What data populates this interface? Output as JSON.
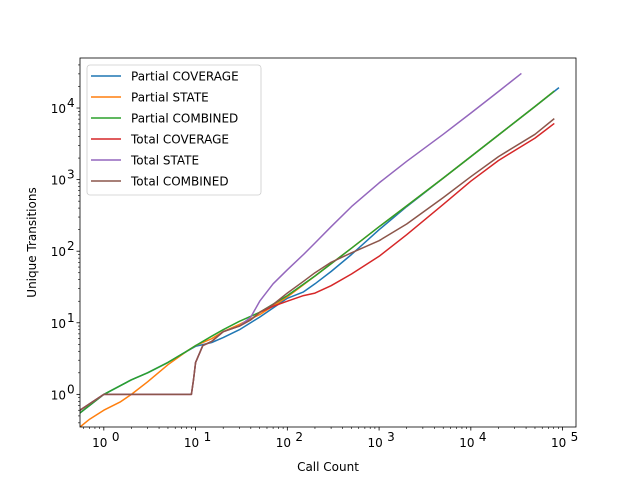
{
  "chart_data": {
    "type": "line",
    "title": "",
    "xlabel": "Call Count",
    "ylabel": "Unique Transitions",
    "xscale": "log",
    "yscale": "log",
    "xlim": [
      0.55,
      140000
    ],
    "ylim": [
      0.35,
      50000
    ],
    "grid": false,
    "legend_position": "top-left",
    "x_ticks": [
      {
        "value": 1,
        "base": "10",
        "exp": "0"
      },
      {
        "value": 10,
        "base": "10",
        "exp": "1"
      },
      {
        "value": 100,
        "base": "10",
        "exp": "2"
      },
      {
        "value": 1000,
        "base": "10",
        "exp": "3"
      },
      {
        "value": 10000,
        "base": "10",
        "exp": "4"
      },
      {
        "value": 100000,
        "base": "10",
        "exp": "5"
      }
    ],
    "y_ticks": [
      {
        "value": 1,
        "base": "10",
        "exp": "0"
      },
      {
        "value": 10,
        "base": "10",
        "exp": "1"
      },
      {
        "value": 100,
        "base": "10",
        "exp": "2"
      },
      {
        "value": 1000,
        "base": "10",
        "exp": "3"
      },
      {
        "value": 10000,
        "base": "10",
        "exp": "4"
      }
    ],
    "series": [
      {
        "name": "Partial COVERAGE",
        "color": "#1f77b4",
        "x": [
          0.55,
          1,
          2,
          3,
          5,
          8,
          10,
          15,
          20,
          30,
          50,
          100,
          150,
          200,
          300,
          500,
          1000,
          2000,
          5000,
          10000,
          20000,
          50000,
          90000
        ],
        "y": [
          0.55,
          1.0,
          1.6,
          2.0,
          2.8,
          4.0,
          4.7,
          5.3,
          6.2,
          8.0,
          12.0,
          22.0,
          27.0,
          35.0,
          52.0,
          90.0,
          200.0,
          420.0,
          1050.0,
          2100.0,
          4200.0,
          10500.0,
          19000.0
        ]
      },
      {
        "name": "Partial STATE",
        "color": "#ff7f0e",
        "x": [
          0.55,
          0.7,
          1,
          1.5,
          2,
          3,
          5,
          8,
          10,
          15,
          20,
          30,
          50,
          100,
          200,
          500,
          1000,
          2000,
          5000,
          10000,
          20000,
          50000,
          80000
        ],
        "y": [
          0.35,
          0.45,
          0.6,
          0.78,
          1.0,
          1.5,
          2.6,
          4.0,
          4.8,
          6.0,
          7.5,
          9.5,
          13.0,
          23.0,
          45.0,
          110.0,
          220.0,
          430.0,
          1050.0,
          2100.0,
          4200.0,
          10500.0,
          17000.0
        ]
      },
      {
        "name": "Partial COMBINED",
        "color": "#2ca02c",
        "x": [
          0.55,
          1,
          2,
          3,
          5,
          8,
          10,
          15,
          20,
          30,
          50,
          100,
          200,
          500,
          1000,
          2000,
          5000,
          10000,
          20000,
          50000,
          80000
        ],
        "y": [
          0.55,
          1.0,
          1.6,
          2.0,
          2.8,
          4.0,
          4.8,
          6.5,
          8.0,
          10.5,
          14.0,
          24.0,
          45.0,
          110.0,
          220.0,
          430.0,
          1050.0,
          2100.0,
          4200.0,
          10500.0,
          17000.0
        ]
      },
      {
        "name": "Total COVERAGE",
        "color": "#d62728",
        "x": [
          0.55,
          1,
          2,
          5,
          9,
          9.5,
          10,
          12,
          15,
          20,
          30,
          40,
          50,
          70,
          100,
          150,
          200,
          300,
          500,
          1000,
          2000,
          5000,
          10000,
          20000,
          50000,
          80000
        ],
        "y": [
          0.6,
          1.0,
          1.0,
          1.0,
          1.0,
          1.6,
          2.8,
          4.8,
          5.5,
          7.5,
          9.0,
          11.0,
          14.0,
          17.0,
          20.0,
          24.0,
          26.0,
          33.0,
          48.0,
          85.0,
          170.0,
          450.0,
          950.0,
          1850.0,
          3800.0,
          6000.0
        ]
      },
      {
        "name": "Total STATE",
        "color": "#9467bd",
        "x": [
          0.55,
          1,
          2,
          5,
          9,
          9.5,
          10,
          12,
          15,
          20,
          30,
          40,
          50,
          70,
          100,
          150,
          200,
          300,
          500,
          1000,
          2000,
          5000,
          10000,
          20000,
          35000
        ],
        "y": [
          0.6,
          1.0,
          1.0,
          1.0,
          1.0,
          1.6,
          2.8,
          4.8,
          5.5,
          7.5,
          9.0,
          12.0,
          20.0,
          35.0,
          55.0,
          90.0,
          130.0,
          220.0,
          420.0,
          900.0,
          1800.0,
          4300.0,
          8500.0,
          17000.0,
          30000.0
        ]
      },
      {
        "name": "Total COMBINED",
        "color": "#8c564b",
        "x": [
          0.55,
          1,
          2,
          5,
          9,
          9.5,
          10,
          12,
          15,
          20,
          30,
          40,
          50,
          70,
          100,
          150,
          200,
          300,
          500,
          1000,
          2000,
          5000,
          10000,
          20000,
          50000,
          80000
        ],
        "y": [
          0.6,
          1.0,
          1.0,
          1.0,
          1.0,
          1.6,
          2.8,
          4.8,
          5.5,
          7.5,
          9.0,
          11.0,
          14.0,
          18.0,
          26.0,
          38.0,
          50.0,
          70.0,
          95.0,
          140.0,
          240.0,
          560.0,
          1100.0,
          2100.0,
          4300.0,
          7000.0
        ]
      }
    ]
  }
}
